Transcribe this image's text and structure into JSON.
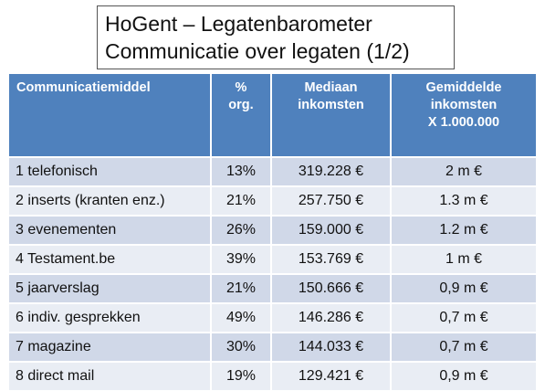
{
  "title": {
    "line1": "HoGent – Legatenbarometer",
    "line2": "Communicatie over legaten (1/2)"
  },
  "table": {
    "headers": [
      [
        "Communicatiemiddel"
      ],
      [
        "%",
        "org."
      ],
      [
        "Mediaan",
        "inkomsten"
      ],
      [
        "Gemiddelde",
        "inkomsten",
        "X 1.000.000"
      ]
    ],
    "rows": [
      [
        "1 telefonisch",
        "13%",
        "319.228 €",
        "2 m €"
      ],
      [
        "2 inserts (kranten enz.)",
        "21%",
        "257.750 €",
        "1.3 m €"
      ],
      [
        "3 evenementen",
        "26%",
        "159.000 €",
        "1.2 m €"
      ],
      [
        "4 Testament.be",
        "39%",
        "153.769 €",
        "1 m €"
      ],
      [
        "5 jaarverslag",
        "21%",
        "150.666 €",
        "0,9 m €"
      ],
      [
        "6 indiv. gesprekken",
        "49%",
        "146.286 €",
        "0,7 m €"
      ],
      [
        "7 magazine",
        "30%",
        "144.033 €",
        "0,7 m €"
      ],
      [
        "8 direct mail",
        "19%",
        "129.421 €",
        "0,9 m €"
      ]
    ]
  },
  "colors": {
    "header_bg": "#4f81bd",
    "row_odd": "#d0d8e8",
    "row_even": "#e9edf4"
  }
}
